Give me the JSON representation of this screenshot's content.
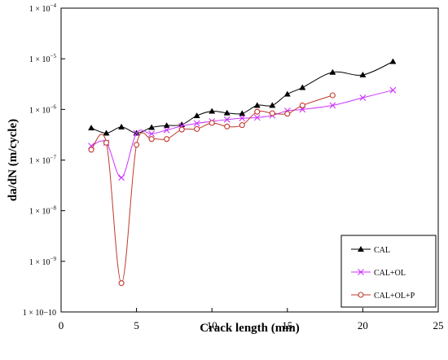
{
  "chart_data": {
    "type": "line",
    "xlabel": "Crack length (mm)",
    "ylabel": "da/dN (m/cycle)",
    "xlim": [
      0,
      25
    ],
    "ylim": [
      1e-10,
      0.0001
    ],
    "y_scale": "log",
    "grid": false,
    "legend_position": "bottom-right",
    "x_ticks": [
      0,
      5,
      10,
      15,
      20,
      25
    ],
    "x_tick_labels": [
      "0",
      "5",
      "10",
      "15",
      "20",
      "25"
    ],
    "y_ticks": [
      1e-10,
      1e-09,
      1e-08,
      1e-07,
      1e-06,
      1e-05,
      0.0001
    ],
    "y_tick_labels": [
      "1 × 10−10",
      "1 × 10−9",
      "1 × 10−8",
      "1 × 10−7",
      "1 × 10−6",
      "1 × 10−5",
      "1 × 10−4"
    ],
    "series": [
      {
        "name": "CAL",
        "color": "#000000",
        "marker": "triangle",
        "x": [
          2,
          3,
          4,
          5,
          6,
          7,
          8,
          9,
          10,
          11,
          12,
          13,
          14,
          15,
          16,
          18,
          20,
          22
        ],
        "y": [
          4.3e-07,
          3.4e-07,
          4.5e-07,
          3.4e-07,
          4.4e-07,
          4.8e-07,
          5e-07,
          7.5e-07,
          9.2e-07,
          8.5e-07,
          8.3e-07,
          1.2e-06,
          1.2e-06,
          2e-06,
          2.7e-06,
          5.4e-06,
          4.8e-06,
          8.8e-06
        ]
      },
      {
        "name": "CAL+OL",
        "color": "#cc33ff",
        "marker": "x",
        "x": [
          2,
          3,
          4,
          5,
          6,
          7,
          8,
          9,
          10,
          11,
          12,
          13,
          14,
          15,
          16,
          18,
          20,
          22
        ],
        "y": [
          1.9e-07,
          2.2e-07,
          4.5e-08,
          3.4e-07,
          3.3e-07,
          3.9e-07,
          4.7e-07,
          5.3e-07,
          5.8e-07,
          6.3e-07,
          6.7e-07,
          6.9e-07,
          7.6e-07,
          9.4e-07,
          1e-06,
          1.2e-06,
          1.7e-06,
          2.4e-06
        ]
      },
      {
        "name": "CAL+OL+P",
        "color": "#c0392b",
        "marker": "circle",
        "x": [
          2,
          3,
          4,
          5,
          6,
          7,
          8,
          9,
          10,
          11,
          12,
          13,
          14,
          15,
          16,
          18
        ],
        "y": [
          1.6e-07,
          2.2e-07,
          3.7e-10,
          2e-07,
          2.6e-07,
          2.6e-07,
          4e-07,
          4.1e-07,
          5.4e-07,
          4.6e-07,
          4.9e-07,
          9e-07,
          8.4e-07,
          8.2e-07,
          1.2e-06,
          1.9e-06
        ]
      }
    ]
  }
}
